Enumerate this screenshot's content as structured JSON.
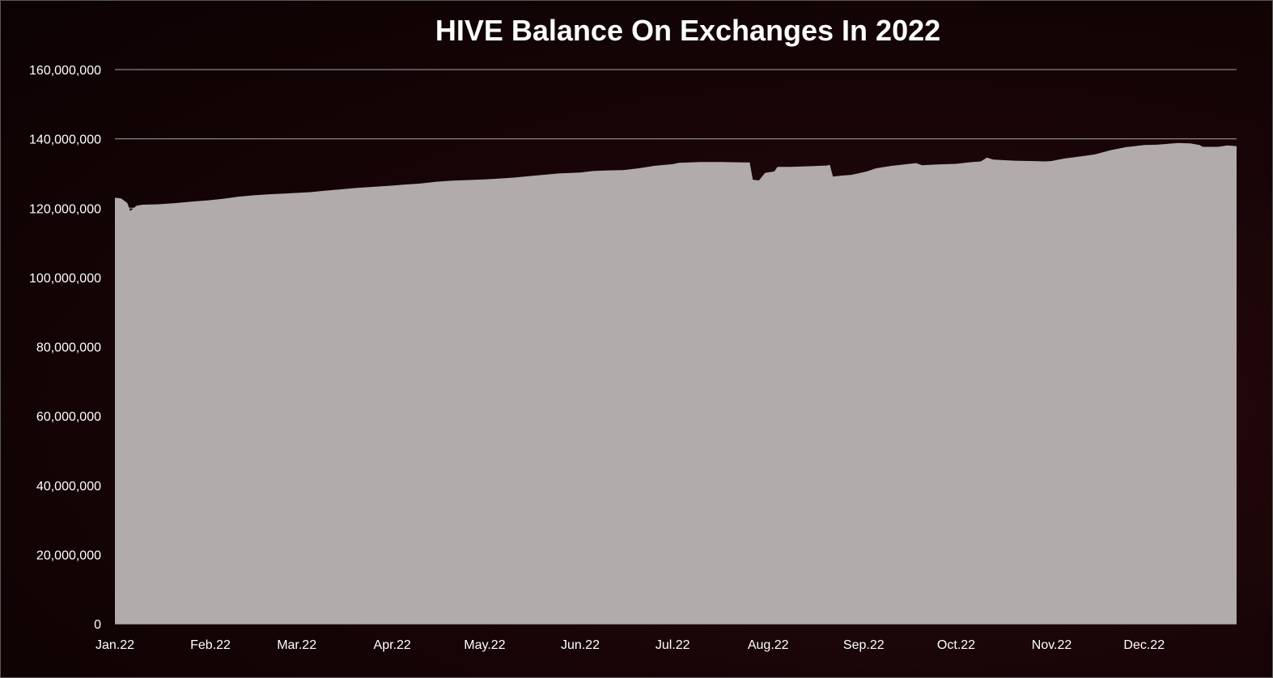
{
  "chart_data": {
    "type": "area",
    "title": "HIVE Balance On Exchanges In 2022",
    "xlabel": "",
    "ylabel": "",
    "ylim": [
      0,
      160000000
    ],
    "y_ticks": [
      0,
      20000000,
      40000000,
      60000000,
      80000000,
      100000000,
      120000000,
      140000000,
      160000000
    ],
    "y_tick_labels": [
      "0",
      "20,000,000",
      "40,000,000",
      "60,000,000",
      "80,000,000",
      "100,000,000",
      "120,000,000",
      "140,000,000",
      "160,000,000"
    ],
    "x_tick_labels": [
      {
        "label": "Jan.22",
        "date": "2022-01-01"
      },
      {
        "label": "Feb.22",
        "date": "2022-02-01"
      },
      {
        "label": "Mar.22",
        "date": "2022-03-01"
      },
      {
        "label": "Apr.22",
        "date": "2022-04-01"
      },
      {
        "label": "May.22",
        "date": "2022-05-01"
      },
      {
        "label": "Jun.22",
        "date": "2022-06-01"
      },
      {
        "label": "Jul.22",
        "date": "2022-07-01"
      },
      {
        "label": "Aug.22",
        "date": "2022-08-01"
      },
      {
        "label": "Sep.22",
        "date": "2022-09-01"
      },
      {
        "label": "Oct.22",
        "date": "2022-10-01"
      },
      {
        "label": "Nov.22",
        "date": "2022-11-01"
      },
      {
        "label": "Dec.22",
        "date": "2022-12-01"
      }
    ],
    "grid": true,
    "legend": "none",
    "series": [
      {
        "color": "#b1abab",
        "points": [
          [
            "2022-01-01",
            123000000
          ],
          [
            "2022-01-03",
            122800000
          ],
          [
            "2022-01-05",
            121500000
          ],
          [
            "2022-01-06",
            119200000
          ],
          [
            "2022-01-08",
            120700000
          ],
          [
            "2022-01-10",
            121000000
          ],
          [
            "2022-01-15",
            121100000
          ],
          [
            "2022-01-20",
            121400000
          ],
          [
            "2022-01-25",
            121800000
          ],
          [
            "2022-02-01",
            122300000
          ],
          [
            "2022-02-05",
            122700000
          ],
          [
            "2022-02-10",
            123300000
          ],
          [
            "2022-02-15",
            123700000
          ],
          [
            "2022-02-20",
            124000000
          ],
          [
            "2022-02-25",
            124200000
          ],
          [
            "2022-03-01",
            124400000
          ],
          [
            "2022-03-05",
            124600000
          ],
          [
            "2022-03-10",
            125000000
          ],
          [
            "2022-03-15",
            125400000
          ],
          [
            "2022-03-20",
            125800000
          ],
          [
            "2022-03-25",
            126100000
          ],
          [
            "2022-04-01",
            126500000
          ],
          [
            "2022-04-05",
            126800000
          ],
          [
            "2022-04-10",
            127100000
          ],
          [
            "2022-04-15",
            127600000
          ],
          [
            "2022-04-20",
            127900000
          ],
          [
            "2022-04-25",
            128100000
          ],
          [
            "2022-05-01",
            128300000
          ],
          [
            "2022-05-05",
            128500000
          ],
          [
            "2022-05-10",
            128800000
          ],
          [
            "2022-05-15",
            129200000
          ],
          [
            "2022-05-20",
            129600000
          ],
          [
            "2022-05-25",
            130000000
          ],
          [
            "2022-06-01",
            130300000
          ],
          [
            "2022-06-05",
            130700000
          ],
          [
            "2022-06-10",
            130900000
          ],
          [
            "2022-06-15",
            131000000
          ],
          [
            "2022-06-20",
            131500000
          ],
          [
            "2022-06-25",
            132200000
          ],
          [
            "2022-07-01",
            132700000
          ],
          [
            "2022-07-03",
            133100000
          ],
          [
            "2022-07-10",
            133300000
          ],
          [
            "2022-07-17",
            133300000
          ],
          [
            "2022-07-24",
            133200000
          ],
          [
            "2022-07-26",
            133200000
          ],
          [
            "2022-07-27",
            128200000
          ],
          [
            "2022-07-29",
            128000000
          ],
          [
            "2022-07-31",
            130200000
          ],
          [
            "2022-08-03",
            130600000
          ],
          [
            "2022-08-04",
            131900000
          ],
          [
            "2022-08-08",
            131900000
          ],
          [
            "2022-08-15",
            132100000
          ],
          [
            "2022-08-20",
            132300000
          ],
          [
            "2022-08-21",
            132500000
          ],
          [
            "2022-08-22",
            129100000
          ],
          [
            "2022-08-25",
            129400000
          ],
          [
            "2022-08-28",
            129600000
          ],
          [
            "2022-08-31",
            130200000
          ],
          [
            "2022-09-02",
            130600000
          ],
          [
            "2022-09-05",
            131500000
          ],
          [
            "2022-09-10",
            132200000
          ],
          [
            "2022-09-15",
            132700000
          ],
          [
            "2022-09-18",
            133000000
          ],
          [
            "2022-09-20",
            132400000
          ],
          [
            "2022-09-25",
            132600000
          ],
          [
            "2022-10-01",
            132800000
          ],
          [
            "2022-10-05",
            133200000
          ],
          [
            "2022-10-09",
            133500000
          ],
          [
            "2022-10-11",
            134600000
          ],
          [
            "2022-10-13",
            134000000
          ],
          [
            "2022-10-20",
            133700000
          ],
          [
            "2022-10-25",
            133600000
          ],
          [
            "2022-10-30",
            133500000
          ],
          [
            "2022-11-01",
            133600000
          ],
          [
            "2022-11-05",
            134300000
          ],
          [
            "2022-11-10",
            134900000
          ],
          [
            "2022-11-15",
            135500000
          ],
          [
            "2022-11-20",
            136700000
          ],
          [
            "2022-11-25",
            137600000
          ],
          [
            "2022-12-01",
            138200000
          ],
          [
            "2022-12-05",
            138300000
          ],
          [
            "2022-12-08",
            138500000
          ],
          [
            "2022-12-12",
            138800000
          ],
          [
            "2022-12-16",
            138700000
          ],
          [
            "2022-12-19",
            138200000
          ],
          [
            "2022-12-20",
            137700000
          ],
          [
            "2022-12-25",
            137700000
          ],
          [
            "2022-12-28",
            138100000
          ],
          [
            "2022-12-31",
            137900000
          ]
        ]
      }
    ]
  }
}
